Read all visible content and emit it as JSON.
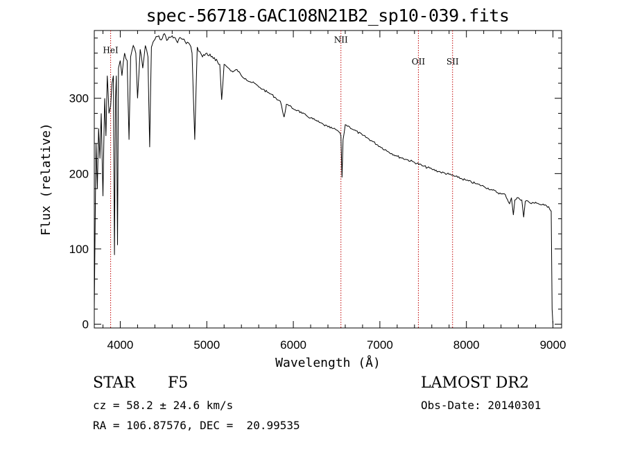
{
  "chart_data": {
    "type": "line",
    "title": "spec-56718-GAC108N21B2_sp10-039.fits",
    "xlabel": "Wavelength (Å)",
    "ylabel": "Flux (relative)",
    "xlim": [
      3700,
      9100
    ],
    "ylim": [
      -5,
      390
    ],
    "xticks": [
      4000,
      5000,
      6000,
      7000,
      8000,
      9000
    ],
    "yticks": [
      0,
      100,
      200,
      300
    ],
    "series": [
      {
        "x": [
          3700,
          3720,
          3735,
          3750,
          3765,
          3780,
          3800,
          3820,
          3835,
          3850,
          3870,
          3889,
          3905,
          3920,
          3933,
          3945,
          3955,
          3968,
          3980,
          4000,
          4020,
          4050,
          4080,
          4101,
          4120,
          4150,
          4180,
          4200,
          4230,
          4260,
          4290,
          4320,
          4340,
          4360,
          4380,
          4400,
          4430,
          4460,
          4500,
          4550,
          4600,
          4650,
          4700,
          4750,
          4800,
          4830,
          4861,
          4890,
          4920,
          4950,
          5000,
          5050,
          5100,
          5150,
          5172,
          5200,
          5250,
          5300,
          5350,
          5400,
          5450,
          5500,
          5550,
          5600,
          5650,
          5700,
          5750,
          5800,
          5850,
          5893,
          5920,
          5950,
          6000,
          6050,
          6100,
          6150,
          6200,
          6250,
          6300,
          6350,
          6400,
          6450,
          6500,
          6530,
          6550,
          6563,
          6575,
          6600,
          6650,
          6700,
          6800,
          6900,
          7000,
          7100,
          7200,
          7300,
          7400,
          7500,
          7600,
          7700,
          7800,
          7900,
          8000,
          8100,
          8200,
          8300,
          8400,
          8450,
          8498,
          8520,
          8542,
          8560,
          8600,
          8640,
          8662,
          8680,
          8700,
          8750,
          8800,
          8850,
          8900,
          8950,
          8980,
          8990,
          9000
        ],
        "values": [
          20,
          240,
          180,
          260,
          220,
          280,
          170,
          300,
          250,
          330,
          280,
          290,
          320,
          330,
          92,
          300,
          330,
          105,
          340,
          350,
          330,
          360,
          350,
          245,
          355,
          370,
          360,
          300,
          365,
          340,
          370,
          355,
          235,
          368,
          375,
          378,
          382,
          378,
          385,
          378,
          383,
          376,
          380,
          375,
          372,
          360,
          245,
          368,
          362,
          355,
          360,
          355,
          350,
          345,
          298,
          345,
          340,
          335,
          338,
          330,
          326,
          322,
          320,
          315,
          312,
          308,
          305,
          300,
          296,
          275,
          292,
          290,
          286,
          284,
          280,
          277,
          274,
          271,
          268,
          265,
          262,
          260,
          258,
          255,
          250,
          195,
          245,
          265,
          262,
          258,
          251,
          244,
          236,
          229,
          223,
          219,
          215,
          210,
          206,
          202,
          199,
          195,
          191,
          187,
          183,
          178,
          173,
          172,
          160,
          168,
          145,
          165,
          168,
          165,
          142,
          163,
          164,
          160,
          162,
          159,
          158,
          156,
          150,
          20,
          0
        ]
      }
    ],
    "annotations": [
      {
        "label": "HeI",
        "x": 3889,
        "y": 360
      },
      {
        "label": "NII",
        "x": 6550,
        "y": 374
      },
      {
        "label": "OII",
        "x": 7445,
        "y": 345
      },
      {
        "label": "SII",
        "x": 7840,
        "y": 345
      }
    ]
  },
  "info": {
    "class_label": "STAR",
    "subclass_label": "F5",
    "cz_text": "cz = 58.2 ± 24.6 km/s",
    "coords_text": "RA = 106.87576, DEC =  20.99535",
    "survey_text": "LAMOST DR2",
    "obs_date_text": "Obs-Date: 20140301"
  }
}
